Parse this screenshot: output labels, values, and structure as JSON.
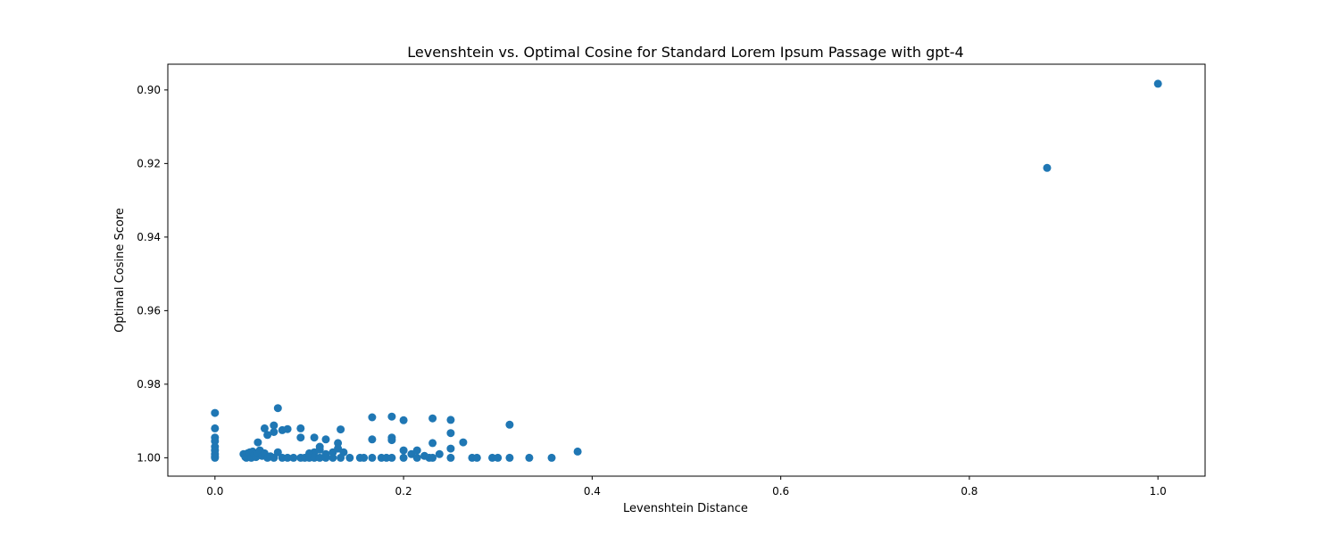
{
  "chart_data": {
    "type": "scatter",
    "title": "Levenshtein vs. Optimal Cosine for Standard Lorem Ipsum Passage with gpt-4",
    "xlabel": "Levenshtein Distance",
    "ylabel": "Optimal Cosine Score",
    "xlim": [
      -0.05,
      1.05
    ],
    "ylim": [
      1.005,
      0.893
    ],
    "y_inverted": true,
    "xticks": [
      0.0,
      0.2,
      0.4,
      0.6,
      0.8,
      1.0
    ],
    "xtick_labels": [
      "0.0",
      "0.2",
      "0.4",
      "0.6",
      "0.8",
      "1.0"
    ],
    "yticks": [
      0.9,
      0.92,
      0.94,
      0.96,
      0.98,
      1.0
    ],
    "ytick_labels": [
      "0.90",
      "0.92",
      "0.94",
      "0.96",
      "0.98",
      "1.00"
    ],
    "grid": false,
    "marker_color": "#1f77b4",
    "series": [
      {
        "points": [
          [
            1.0,
            0.8983
          ],
          [
            0.8824,
            0.9212
          ],
          [
            0.0,
            0.9878
          ],
          [
            0.0,
            0.992
          ],
          [
            0.0,
            0.9945
          ],
          [
            0.0,
            0.9955
          ],
          [
            0.0,
            0.997
          ],
          [
            0.0,
            0.998
          ],
          [
            0.0,
            0.999
          ],
          [
            0.0,
            0.9997
          ],
          [
            0.0,
            1.0
          ],
          [
            0.0667,
            0.9865
          ],
          [
            0.0625,
            0.9912
          ],
          [
            0.0526,
            0.992
          ],
          [
            0.0714,
            0.9925
          ],
          [
            0.0769,
            0.9922
          ],
          [
            0.0625,
            0.993
          ],
          [
            0.0556,
            0.9938
          ],
          [
            0.0455,
            0.9958
          ],
          [
            0.0303,
            0.999
          ],
          [
            0.0323,
            0.9998
          ],
          [
            0.0333,
            1.0
          ],
          [
            0.0345,
            0.9988
          ],
          [
            0.0357,
            0.9995
          ],
          [
            0.037,
            0.9985
          ],
          [
            0.0385,
            1.0
          ],
          [
            0.04,
            0.9983
          ],
          [
            0.0417,
            0.9992
          ],
          [
            0.0435,
            0.9998
          ],
          [
            0.0455,
            0.9987
          ],
          [
            0.0476,
            0.998
          ],
          [
            0.05,
            0.9995
          ],
          [
            0.0526,
            0.9988
          ],
          [
            0.0556,
            1.0
          ],
          [
            0.0588,
            0.9996
          ],
          [
            0.0625,
            1.0
          ],
          [
            0.0667,
            0.9985
          ],
          [
            0.0714,
            1.0
          ],
          [
            0.0769,
            1.0
          ],
          [
            0.0833,
            1.0
          ],
          [
            0.0909,
            1.0
          ],
          [
            0.0952,
            1.0
          ],
          [
            0.0909,
            0.992
          ],
          [
            0.0909,
            0.9945
          ],
          [
            0.1053,
            0.9945
          ],
          [
            0.1176,
            0.995
          ],
          [
            0.1111,
            0.997
          ],
          [
            0.1053,
            0.9985
          ],
          [
            0.1,
            0.9988
          ],
          [
            0.1111,
            0.9978
          ],
          [
            0.1176,
            0.999
          ],
          [
            0.125,
            0.9985
          ],
          [
            0.1,
            1.0
          ],
          [
            0.1053,
            1.0
          ],
          [
            0.1111,
            1.0
          ],
          [
            0.1176,
            1.0
          ],
          [
            0.125,
            1.0
          ],
          [
            0.1333,
            0.9923
          ],
          [
            0.1304,
            0.996
          ],
          [
            0.1304,
            0.9975
          ],
          [
            0.1364,
            0.9985
          ],
          [
            0.1333,
            1.0
          ],
          [
            0.1429,
            1.0
          ],
          [
            0.1538,
            1.0
          ],
          [
            0.1579,
            1.0
          ],
          [
            0.1667,
            0.989
          ],
          [
            0.1667,
            0.995
          ],
          [
            0.1875,
            0.9888
          ],
          [
            0.1875,
            0.9945
          ],
          [
            0.1875,
            0.9952
          ],
          [
            0.1667,
            1.0
          ],
          [
            0.1765,
            1.0
          ],
          [
            0.1818,
            1.0
          ],
          [
            0.1875,
            1.0
          ],
          [
            0.2,
            0.9898
          ],
          [
            0.2,
            0.998
          ],
          [
            0.2,
            1.0
          ],
          [
            0.2083,
            0.999
          ],
          [
            0.2143,
            0.998
          ],
          [
            0.2143,
            1.0
          ],
          [
            0.2222,
            0.9995
          ],
          [
            0.2273,
            1.0
          ],
          [
            0.2308,
            0.9893
          ],
          [
            0.2308,
            0.996
          ],
          [
            0.2308,
            1.0
          ],
          [
            0.2381,
            0.999
          ],
          [
            0.25,
            0.9897
          ],
          [
            0.25,
            0.9933
          ],
          [
            0.25,
            0.9975
          ],
          [
            0.25,
            1.0
          ],
          [
            0.2632,
            0.9958
          ],
          [
            0.2727,
            1.0
          ],
          [
            0.2778,
            1.0
          ],
          [
            0.2941,
            1.0
          ],
          [
            0.3,
            1.0
          ],
          [
            0.3125,
            0.991
          ],
          [
            0.3125,
            1.0
          ],
          [
            0.3333,
            1.0
          ],
          [
            0.3571,
            1.0
          ],
          [
            0.3846,
            0.9983
          ]
        ]
      }
    ]
  }
}
